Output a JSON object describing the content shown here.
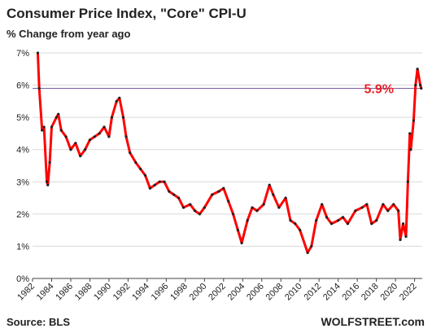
{
  "chart_data": {
    "type": "line",
    "title": "Consumer Price Index, \"Core\" CPI-U",
    "subtitle": "% Change from year ago",
    "source": "Source: BLS",
    "watermark": "WOLFSTREET.com",
    "x": [
      1982.55,
      1982.7,
      1983.0,
      1983.2,
      1983.5,
      1983.6,
      1983.8,
      1984.0,
      1984.5,
      1984.7,
      1985.0,
      1985.5,
      1986.0,
      1986.5,
      1987.0,
      1987.5,
      1988.0,
      1988.5,
      1989.0,
      1989.5,
      1990.0,
      1990.3,
      1990.8,
      1991.1,
      1991.5,
      1991.8,
      1992.2,
      1992.8,
      1993.3,
      1993.8,
      1994.3,
      1994.8,
      1995.3,
      1995.8,
      1996.3,
      1996.8,
      1997.3,
      1997.8,
      1998.5,
      1999.0,
      1999.5,
      2000.0,
      2000.8,
      2001.5,
      2002.0,
      2002.5,
      2003.0,
      2003.5,
      2003.9,
      2004.5,
      2005.0,
      2005.5,
      2006.2,
      2006.8,
      2007.2,
      2007.8,
      2008.5,
      2009.0,
      2009.5,
      2010.0,
      2010.8,
      2011.2,
      2011.7,
      2012.3,
      2012.8,
      2013.3,
      2014.0,
      2014.5,
      2015.0,
      2015.8,
      2016.5,
      2017.0,
      2017.5,
      2018.0,
      2018.7,
      2019.2,
      2019.8,
      2020.3,
      2020.5,
      2020.8,
      2021.1,
      2021.3,
      2021.5,
      2021.6,
      2021.9,
      2022.1,
      2022.3,
      2022.6,
      2022.7
    ],
    "series": [
      {
        "name": "Core CPI-U",
        "color": "#ff0000",
        "marker_color": "#222222",
        "values": [
          7.0,
          5.9,
          4.6,
          4.7,
          3.0,
          2.9,
          3.6,
          4.7,
          5.0,
          5.1,
          4.6,
          4.4,
          4.0,
          4.2,
          3.8,
          4.0,
          4.3,
          4.4,
          4.5,
          4.7,
          4.4,
          5.0,
          5.5,
          5.6,
          5.0,
          4.4,
          3.9,
          3.6,
          3.4,
          3.2,
          2.8,
          2.9,
          3.0,
          3.0,
          2.7,
          2.6,
          2.5,
          2.2,
          2.3,
          2.1,
          2.0,
          2.2,
          2.6,
          2.7,
          2.8,
          2.4,
          2.0,
          1.5,
          1.1,
          1.8,
          2.2,
          2.1,
          2.3,
          2.9,
          2.6,
          2.2,
          2.5,
          1.8,
          1.7,
          1.5,
          0.8,
          1.0,
          1.8,
          2.3,
          1.9,
          1.7,
          1.8,
          1.9,
          1.7,
          2.1,
          2.2,
          2.3,
          1.7,
          1.8,
          2.3,
          2.1,
          2.3,
          2.1,
          1.2,
          1.7,
          1.3,
          3.0,
          4.5,
          4.0,
          4.9,
          6.0,
          6.5,
          6.0,
          5.9
        ]
      }
    ],
    "reference_line": {
      "value": 5.9,
      "label": "5.9%",
      "color": "#7b5ea7",
      "label_color": "#e8202a"
    },
    "xlim": [
      1982,
      2022.8
    ],
    "ylim": [
      0,
      7
    ],
    "xticks": [
      1982,
      1984,
      1986,
      1988,
      1990,
      1992,
      1994,
      1996,
      1998,
      2000,
      2002,
      2004,
      2006,
      2008,
      2010,
      2012,
      2014,
      2016,
      2018,
      2020,
      2022
    ],
    "yticks": [
      {
        "value": 0,
        "label": "0%"
      },
      {
        "value": 1,
        "label": "1%"
      },
      {
        "value": 2,
        "label": "2%"
      },
      {
        "value": 3,
        "label": "3%"
      },
      {
        "value": 4,
        "label": "4%"
      },
      {
        "value": 5,
        "label": "5%"
      },
      {
        "value": 6,
        "label": "6%"
      },
      {
        "value": 7,
        "label": "7%"
      }
    ],
    "grid": true
  }
}
